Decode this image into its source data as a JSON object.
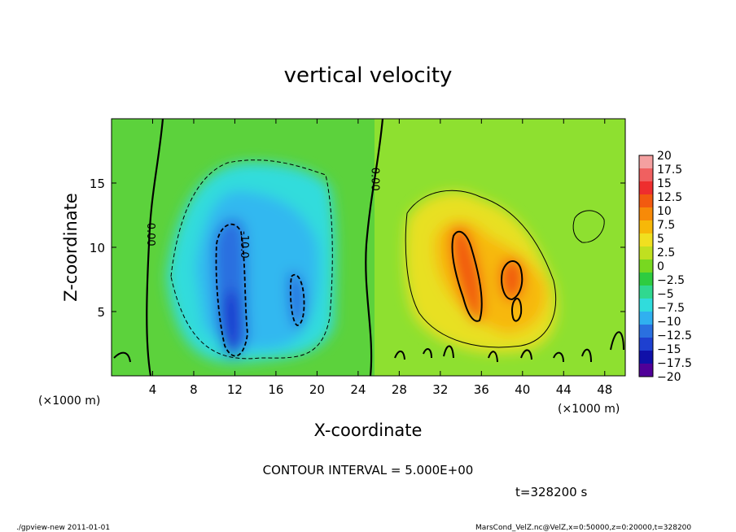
{
  "chart_data": {
    "type": "heatmap",
    "title": "vertical velocity",
    "xlabel": "X-coordinate",
    "ylabel": "Z-coordinate",
    "x_unit_left": "(×1000 m)",
    "x_unit_right": "(×1000 m)",
    "x_ticks": [
      "4",
      "8",
      "12",
      "16",
      "20",
      "24",
      "28",
      "32",
      "36",
      "40",
      "44",
      "48"
    ],
    "x_tick_values": [
      4,
      8,
      12,
      16,
      20,
      24,
      28,
      32,
      36,
      40,
      44,
      48
    ],
    "y_ticks": [
      "5",
      "10",
      "15"
    ],
    "y_tick_values": [
      5,
      10,
      15
    ],
    "xlim": [
      0,
      50
    ],
    "ylim": [
      0,
      20
    ],
    "colorbar": {
      "labels": [
        "20",
        "17.5",
        "15",
        "12.5",
        "10",
        "7.5",
        "5",
        "2.5",
        "0",
        "−2.5",
        "−5",
        "−7.5",
        "−10",
        "−12.5",
        "−15",
        "−17.5",
        "−20"
      ],
      "colors": [
        "#f4a0a0",
        "#f06060",
        "#ee2e2e",
        "#f25a10",
        "#f78a08",
        "#f7b808",
        "#f0e020",
        "#c0e020",
        "#78d820",
        "#2ecc40",
        "#30d890",
        "#30dcdc",
        "#30b0f0",
        "#2a70e0",
        "#1e40d0",
        "#1010a8",
        "#500098"
      ]
    },
    "contour_labels": [
      {
        "text": "0.00",
        "x": 3.5,
        "z": 11.0
      },
      {
        "text": "-10.0",
        "x": 12.6,
        "z": 10.2
      },
      {
        "text": "0.00",
        "x": 25.3,
        "z": 15.3
      }
    ],
    "contour_interval": "CONTOUR INTERVAL = 5.000E+00",
    "time": "t=328200 s",
    "footer_left": "./gpview-new   2011-01-01",
    "footer_right": "MarsCond_VelZ.nc@VelZ,x=0:50000,z=0:20000,t=328200"
  }
}
